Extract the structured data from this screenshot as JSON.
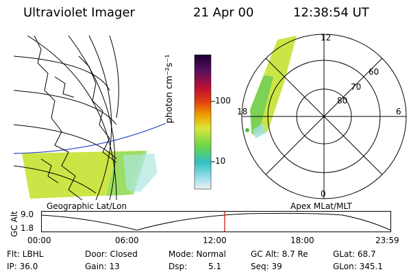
{
  "header": {
    "instrument": "Ultraviolet Imager",
    "date": "21 Apr 00",
    "time": "12:38:54 UT"
  },
  "colorbar": {
    "unit_label": "photon cm⁻²s⁻¹",
    "ticks": [
      "100",
      "10"
    ]
  },
  "polar_plot": {
    "mlt_labels": [
      "12",
      "18",
      "6",
      "0"
    ],
    "lat_labels": [
      "60",
      "70",
      "80"
    ]
  },
  "map_labels": {
    "left": "Geographic Lat/Lon",
    "right": "Apex MLat/MLT"
  },
  "orbit_panel": {
    "axis_label": "GC Alt",
    "y_ticks": [
      "9.0",
      "1.8"
    ],
    "x_ticks": [
      "00:00",
      "06:00",
      "12:00",
      "18:00",
      "23:59"
    ]
  },
  "info": {
    "row1": [
      "Flt: LBHL",
      "Door: Closed",
      "Mode: Normal",
      "GC Alt: 8.7 Re",
      "GLat: 68.7"
    ],
    "row2": [
      "IP: 36.0",
      "Gain: 13",
      "Dsp:",
      "5.1",
      "Seq: 39",
      "GLon: 345.1"
    ]
  },
  "colors": {
    "grid": "#000000",
    "horizon": "#1f3fbf",
    "time_marker": "#d40000",
    "aurora_main": "#c6e63a",
    "aurora_edge": "#7fdcd0"
  }
}
